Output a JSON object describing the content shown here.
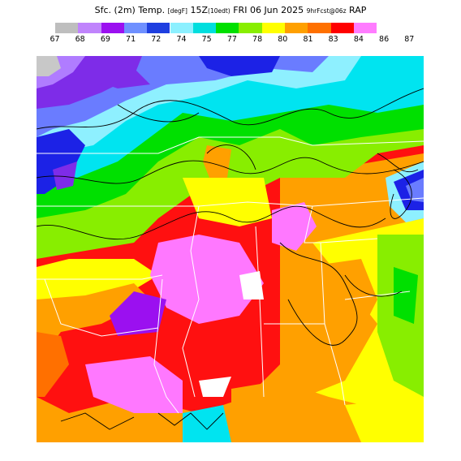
{
  "header": {
    "title_main": "Sfc. (2m) Temp.",
    "units": "[degF]",
    "valid": "15Z",
    "valid_local": "(10edt)",
    "date": "FRI 06 Jun 2025",
    "forecast": "9hrFcst@06z",
    "model": "RAP"
  },
  "legend": {
    "labels": [
      "67",
      "68",
      "69",
      "71",
      "72",
      "74",
      "75",
      "77",
      "78",
      "80",
      "81",
      "83",
      "84",
      "86",
      "87"
    ],
    "colors": [
      "#bebebe",
      "#c084fc",
      "#9b10f0",
      "#6f90ff",
      "#1f3fe0",
      "#8cf0ff",
      "#00dede",
      "#00e000",
      "#88ee00",
      "#ffff00",
      "#ffa000",
      "#ff7000",
      "#ff0000",
      "#ff7cff"
    ]
  },
  "map": {
    "description_colors": {
      "grey": "#c8c8c8",
      "lavender": "#b07cff",
      "purple": "#7e2ce8",
      "blue_light": "#6a7cff",
      "blue_dark": "#1c22e6",
      "cyan_light": "#8ef0ff",
      "cyan": "#00e4f0",
      "green": "#00e000",
      "yellow_green": "#b8f000",
      "yellow": "#ffff00",
      "orange": "#ffa000",
      "red": "#ff1010",
      "pink": "#ff78ff"
    }
  }
}
